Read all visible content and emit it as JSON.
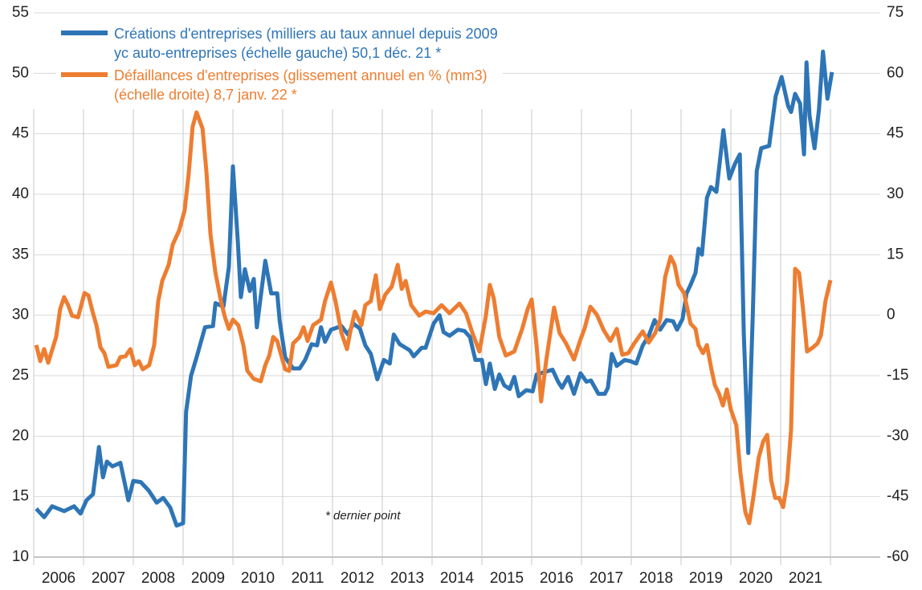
{
  "chart_data": {
    "type": "line",
    "annotation": "* dernier point",
    "xlim": [
      2006,
      2023
    ],
    "xticks": [
      {
        "value": 2006.5,
        "label": "2006"
      },
      {
        "value": 2007.5,
        "label": "2007"
      },
      {
        "value": 2008.5,
        "label": "2008"
      },
      {
        "value": 2009.5,
        "label": "2009"
      },
      {
        "value": 2010.5,
        "label": "2010"
      },
      {
        "value": 2011.5,
        "label": "2011"
      },
      {
        "value": 2012.5,
        "label": "2012"
      },
      {
        "value": 2013.5,
        "label": "2013"
      },
      {
        "value": 2014.5,
        "label": "2014"
      },
      {
        "value": 2015.5,
        "label": "2015"
      },
      {
        "value": 2016.5,
        "label": "2016"
      },
      {
        "value": 2017.5,
        "label": "2017"
      },
      {
        "value": 2018.5,
        "label": "2018"
      },
      {
        "value": 2019.5,
        "label": "2019"
      },
      {
        "value": 2020.5,
        "label": "2020"
      },
      {
        "value": 2021.5,
        "label": "2021"
      }
    ],
    "ylim": [
      10,
      55
    ],
    "yticks": [
      10,
      15,
      20,
      25,
      30,
      35,
      40,
      45,
      50,
      55
    ],
    "y2lim": [
      -60,
      75
    ],
    "y2ticks": [
      -60,
      -45,
      -30,
      -15,
      0,
      15,
      30,
      45,
      60,
      75
    ],
    "grid": true,
    "legend": "upper left",
    "series": [
      {
        "name": "Créations d'entreprises (milliers au taux annuel depuis 2009\nyc auto-entreprises (échelle gauche)  50,1 déc. 21 *",
        "color": "#2e75b6",
        "axis": "y",
        "x": [
          2006.05,
          2006.21,
          2006.37,
          2006.61,
          2006.81,
          2006.94,
          2007.06,
          2007.19,
          2007.31,
          2007.39,
          2007.47,
          2007.58,
          2007.74,
          2007.9,
          2008.0,
          2008.15,
          2008.31,
          2008.47,
          2008.6,
          2008.74,
          2008.87,
          2009.0,
          2009.06,
          2009.16,
          2009.27,
          2009.44,
          2009.6,
          2009.65,
          2009.81,
          2009.92,
          2010.0,
          2010.1,
          2010.16,
          2010.24,
          2010.34,
          2010.42,
          2010.48,
          2010.65,
          2010.77,
          2010.89,
          2010.94,
          2011.05,
          2011.21,
          2011.34,
          2011.45,
          2011.58,
          2011.69,
          2011.77,
          2011.85,
          2011.97,
          2012.18,
          2012.31,
          2012.42,
          2012.55,
          2012.66,
          2012.77,
          2012.9,
          2013.03,
          2013.15,
          2013.23,
          2013.35,
          2013.55,
          2013.63,
          2013.79,
          2013.87,
          2014.03,
          2014.15,
          2014.23,
          2014.35,
          2014.52,
          2014.65,
          2014.76,
          2014.87,
          2015.0,
          2015.08,
          2015.16,
          2015.26,
          2015.35,
          2015.45,
          2015.56,
          2015.65,
          2015.74,
          2015.89,
          2016.02,
          2016.1,
          2016.26,
          2016.42,
          2016.53,
          2016.61,
          2016.73,
          2016.85,
          2016.98,
          2017.1,
          2017.19,
          2017.34,
          2017.47,
          2017.53,
          2017.61,
          2017.71,
          2017.87,
          2017.98,
          2018.1,
          2018.23,
          2018.35,
          2018.47,
          2018.58,
          2018.71,
          2018.84,
          2018.92,
          2019.03,
          2019.11,
          2019.19,
          2019.29,
          2019.35,
          2019.42,
          2019.52,
          2019.6,
          2019.71,
          2019.85,
          2019.97,
          2020.08,
          2020.18,
          2020.26,
          2020.35,
          2020.44,
          2020.52,
          2020.61,
          2020.77,
          2020.9,
          2021.02,
          2021.15,
          2021.21,
          2021.29,
          2021.39,
          2021.47,
          2021.52,
          2021.58,
          2021.68,
          2021.77,
          2021.85,
          2021.94,
          2022.03
        ],
        "values": [
          14,
          13.3,
          14.2,
          13.8,
          14.2,
          13.6,
          14.7,
          15.2,
          19.1,
          16.6,
          17.9,
          17.5,
          17.8,
          14.7,
          16.3,
          16.2,
          15.5,
          14.5,
          14.9,
          14.1,
          12.6,
          12.8,
          22,
          25,
          26.5,
          29,
          29.1,
          31,
          30.7,
          34,
          42.3,
          36,
          31.5,
          33.8,
          32,
          33,
          29,
          34.5,
          31.8,
          31.8,
          29.5,
          26.5,
          25.6,
          25.6,
          26.3,
          27.6,
          27.5,
          29,
          27.8,
          28.8,
          29.1,
          28.4,
          29.3,
          28.9,
          27.5,
          26.8,
          24.7,
          26.3,
          26,
          28.4,
          27.6,
          27.1,
          26.6,
          27.3,
          27.3,
          29.3,
          30,
          28.6,
          28.3,
          28.8,
          28.7,
          28.2,
          26.3,
          26.3,
          24.3,
          26,
          23.9,
          25.1,
          24.2,
          23.9,
          24.9,
          23.3,
          23.8,
          23.7,
          25.1,
          25.3,
          25.5,
          24.5,
          24,
          24.9,
          23.5,
          25.2,
          24.5,
          24.6,
          23.5,
          23.5,
          24,
          26.8,
          25.8,
          26.3,
          26.2,
          26,
          27.5,
          28.3,
          29.6,
          28.8,
          29.6,
          29.5,
          28.8,
          29.7,
          31.8,
          32.5,
          33.5,
          35.5,
          35,
          39.7,
          40.6,
          40.2,
          45.3,
          41.3,
          42.5,
          43.3,
          28.5,
          18.6,
          30,
          41.9,
          43.8,
          44,
          48.1,
          49.7,
          47.3,
          46.8,
          48.3,
          47.5,
          43.3,
          50.9,
          46.5,
          43.8,
          47,
          51.8,
          47.9,
          50.1
        ]
      },
      {
        "name": "Défaillances d'entreprises (glissement annuel en % (mm3)\n(échelle droite)  8,7 janv. 22 *",
        "color": "#ed7d31",
        "axis": "y2",
        "x": [
          2006.05,
          2006.13,
          2006.21,
          2006.29,
          2006.45,
          2006.53,
          2006.61,
          2006.69,
          2006.77,
          2006.89,
          2007.02,
          2007.1,
          2007.18,
          2007.26,
          2007.34,
          2007.42,
          2007.5,
          2007.66,
          2007.74,
          2007.84,
          2007.94,
          2008.03,
          2008.11,
          2008.19,
          2008.32,
          2008.42,
          2008.5,
          2008.58,
          2008.71,
          2008.79,
          2008.92,
          2009.03,
          2009.11,
          2009.19,
          2009.27,
          2009.39,
          2009.47,
          2009.55,
          2009.65,
          2009.76,
          2009.84,
          2009.92,
          2010.0,
          2010.11,
          2010.21,
          2010.29,
          2010.42,
          2010.56,
          2010.65,
          2010.73,
          2010.81,
          2010.89,
          2010.98,
          2011.05,
          2011.13,
          2011.21,
          2011.34,
          2011.42,
          2011.5,
          2011.61,
          2011.77,
          2011.85,
          2011.97,
          2012.06,
          2012.18,
          2012.29,
          2012.37,
          2012.45,
          2012.58,
          2012.66,
          2012.77,
          2012.87,
          2012.95,
          2013.06,
          2013.19,
          2013.31,
          2013.39,
          2013.47,
          2013.58,
          2013.74,
          2013.87,
          2014.03,
          2014.19,
          2014.35,
          2014.55,
          2014.68,
          2014.81,
          2014.95,
          2015.08,
          2015.16,
          2015.24,
          2015.35,
          2015.48,
          2015.65,
          2015.81,
          2015.92,
          2016.0,
          2016.1,
          2016.19,
          2016.29,
          2016.45,
          2016.56,
          2016.69,
          2016.85,
          2016.97,
          2017.06,
          2017.18,
          2017.31,
          2017.45,
          2017.58,
          2017.71,
          2017.82,
          2017.94,
          2018.06,
          2018.23,
          2018.35,
          2018.48,
          2018.58,
          2018.68,
          2018.79,
          2018.87,
          2018.95,
          2019.06,
          2019.19,
          2019.29,
          2019.35,
          2019.44,
          2019.52,
          2019.61,
          2019.68,
          2019.76,
          2019.84,
          2019.92,
          2020.0,
          2020.11,
          2020.19,
          2020.29,
          2020.37,
          2020.45,
          2020.56,
          2020.65,
          2020.73,
          2020.81,
          2020.89,
          2020.97,
          2021.05,
          2021.13,
          2021.21,
          2021.29,
          2021.37,
          2021.45,
          2021.53,
          2021.65,
          2021.74,
          2021.81,
          2021.9,
          2022.0
        ],
        "values": [
          -7.4,
          -11.4,
          -8.4,
          -11.8,
          -5.4,
          1.5,
          4.5,
          2.5,
          -0.1,
          -0.5,
          5.5,
          4.9,
          0.9,
          -2.5,
          -8,
          -9.4,
          -12.8,
          -12.4,
          -10.4,
          -10.2,
          -8.4,
          -12.4,
          -11.4,
          -13.4,
          -12.4,
          -7.4,
          3.5,
          8.5,
          12.5,
          17.5,
          21,
          26,
          34.8,
          46.7,
          50.3,
          46.3,
          35.4,
          20,
          10.5,
          3.5,
          -0.5,
          -3.4,
          -1.1,
          -2.5,
          -7.4,
          -13.8,
          -15.8,
          -16.4,
          -12.4,
          -10,
          -5.4,
          -6.4,
          -10.4,
          -13.4,
          -13.8,
          -7,
          -5.4,
          -3,
          -6.4,
          -2.5,
          -1.1,
          3.5,
          8.1,
          3.5,
          -4.4,
          -8.4,
          -3.4,
          0.9,
          -2.5,
          2.5,
          3.5,
          9.9,
          1.5,
          5.1,
          7.1,
          12.5,
          6.5,
          8.5,
          2.5,
          -0.1,
          0.9,
          0.5,
          2.5,
          0.5,
          2.9,
          0.5,
          -4.4,
          -9,
          -0.1,
          7.5,
          4.1,
          -5.4,
          -10,
          -9,
          -3.4,
          1.5,
          3.9,
          -7.8,
          -21.4,
          -11.4,
          1.9,
          -4.4,
          -7,
          -11,
          -6.4,
          -3.4,
          2.1,
          0.1,
          -3.8,
          -6.4,
          -3.4,
          -9.8,
          -9.4,
          -7,
          -4,
          -6.8,
          -4.4,
          -1.1,
          9.5,
          14.5,
          12.5,
          7.5,
          5.5,
          -2.1,
          -3.4,
          -7.4,
          -9.4,
          -7.4,
          -13.4,
          -17.4,
          -19.4,
          -22.4,
          -18.4,
          -23.4,
          -27.3,
          -38.9,
          -48.8,
          -51.6,
          -45.3,
          -35.3,
          -31.3,
          -29.7,
          -40.9,
          -45.3,
          -45.3,
          -47.6,
          -41.3,
          -28.3,
          11.5,
          10.5,
          1.5,
          -9,
          -8,
          -7,
          -5,
          3.5,
          8.7
        ]
      }
    ]
  }
}
